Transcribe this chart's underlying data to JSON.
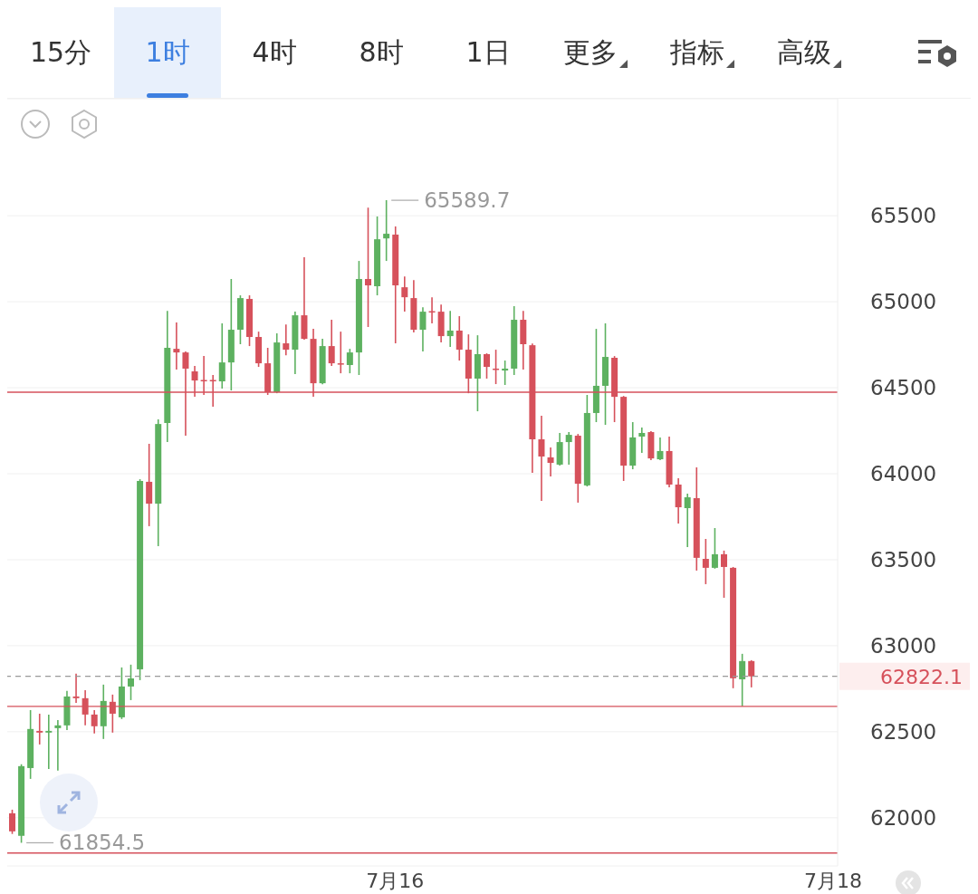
{
  "chart_data": {
    "type": "candlestick",
    "annotations": [
      "15分",
      "1时",
      "4时",
      "8时",
      "1日",
      "更多",
      "指标",
      "高级",
      "65589.7",
      "61854.5"
    ],
    "categories": [
      null,
      null,
      null,
      null,
      null,
      null,
      null,
      null,
      null,
      null,
      null,
      null,
      null,
      null,
      null,
      null,
      null,
      null,
      null,
      null,
      null,
      null,
      null,
      null,
      null,
      null,
      null,
      null,
      null,
      null,
      null,
      null,
      null,
      null,
      null,
      null,
      null,
      null,
      null,
      null,
      null,
      null,
      "7月16",
      null,
      null,
      null,
      null,
      null,
      null,
      null,
      null,
      null,
      null,
      null,
      null,
      null,
      null,
      null,
      null,
      null,
      null,
      null,
      null,
      null,
      null,
      null,
      null,
      null,
      null,
      null,
      null,
      null,
      null,
      null,
      null,
      null,
      null,
      null,
      null,
      null,
      null,
      null,
      null,
      null,
      null,
      null,
      null,
      null,
      null,
      null,
      "7月18"
    ],
    "ohlc": [
      [
        62026,
        62047,
        61906,
        61921
      ],
      [
        61895,
        62311,
        61854.5,
        62300
      ],
      [
        62289,
        62626,
        62226,
        62516
      ],
      [
        62505,
        62605,
        62426,
        62495
      ],
      [
        62495,
        62600,
        62284,
        62505
      ],
      [
        62521,
        62568,
        62274,
        62537
      ],
      [
        62537,
        62737,
        62510,
        62705
      ],
      [
        62705,
        62837,
        62668,
        62695
      ],
      [
        62695,
        62742,
        62537,
        62600
      ],
      [
        62600,
        62626,
        62490,
        62532
      ],
      [
        62532,
        62774,
        62458,
        62679
      ],
      [
        62674,
        62716,
        62495,
        62605
      ],
      [
        62584,
        62874,
        62574,
        62763
      ],
      [
        62763,
        62890,
        62684,
        62810
      ],
      [
        62863,
        63968,
        62800,
        63958
      ],
      [
        63953,
        64174,
        63695,
        63826
      ],
      [
        63826,
        64316,
        63579,
        64289
      ],
      [
        64295,
        64947,
        64184,
        64732
      ],
      [
        64726,
        64879,
        64605,
        64705
      ],
      [
        64705,
        64711,
        64221,
        64611
      ],
      [
        64595,
        64626,
        64447,
        64542
      ],
      [
        64545,
        64684,
        64458,
        64540
      ],
      [
        64545,
        64574,
        64390,
        64537
      ],
      [
        64537,
        64874,
        64495,
        64647
      ],
      [
        64647,
        65132,
        64484,
        64837
      ],
      [
        64837,
        65037,
        64753,
        65021
      ],
      [
        65016,
        65037,
        64742,
        64795
      ],
      [
        64795,
        64826,
        64621,
        64642
      ],
      [
        64642,
        64732,
        64458,
        64474
      ],
      [
        64474,
        64816,
        64468,
        64763
      ],
      [
        64758,
        64868,
        64689,
        64721
      ],
      [
        64721,
        64942,
        64579,
        64921
      ],
      [
        64921,
        65258,
        64779,
        64784
      ],
      [
        64784,
        64842,
        64447,
        64526
      ],
      [
        64526,
        64784,
        64520,
        64742
      ],
      [
        64742,
        64895,
        64626,
        64642
      ],
      [
        64642,
        64826,
        64584,
        64637
      ],
      [
        64632,
        64726,
        64584,
        64705
      ],
      [
        64705,
        65237,
        64574,
        65132
      ],
      [
        65132,
        65547,
        64853,
        65095
      ],
      [
        65090,
        65495,
        65037,
        65363
      ],
      [
        65368,
        65589.7,
        65237,
        65395
      ],
      [
        65390,
        65437,
        64758,
        65095
      ],
      [
        65084,
        65147,
        64942,
        65026
      ],
      [
        65021,
        65126,
        64821,
        64837
      ],
      [
        64837,
        64968,
        64711,
        64942
      ],
      [
        64945,
        65026,
        64874,
        64940
      ],
      [
        64942,
        64984,
        64763,
        64800
      ],
      [
        64800,
        64947,
        64737,
        64832
      ],
      [
        64832,
        64916,
        64658,
        64721
      ],
      [
        64721,
        64810,
        64468,
        64553
      ],
      [
        64553,
        64805,
        64363,
        64695
      ],
      [
        64695,
        64700,
        64553,
        64621
      ],
      [
        64611,
        64721,
        64521,
        64605
      ],
      [
        64600,
        64658,
        64516,
        64611
      ],
      [
        64611,
        64974,
        64574,
        64895
      ],
      [
        64895,
        64947,
        64605,
        64753
      ],
      [
        64747,
        64757,
        64005,
        64200
      ],
      [
        64200,
        64337,
        63842,
        64100
      ],
      [
        64095,
        64153,
        63984,
        64063
      ],
      [
        64053,
        64237,
        64047,
        64184
      ],
      [
        64184,
        64242,
        64053,
        64226
      ],
      [
        64221,
        64231,
        63832,
        63942
      ],
      [
        63932,
        64458,
        63926,
        64353
      ],
      [
        64353,
        64842,
        64300,
        64511
      ],
      [
        64511,
        64874,
        64284,
        64679
      ],
      [
        64674,
        64684,
        64300,
        64447
      ],
      [
        64447,
        64452,
        63958,
        64047
      ],
      [
        64047,
        64300,
        64026,
        64211
      ],
      [
        64216,
        64268,
        64121,
        64237
      ],
      [
        64242,
        64247,
        64079,
        64089
      ],
      [
        64084,
        64211,
        64079,
        64132
      ],
      [
        64132,
        64216,
        63921,
        63937
      ],
      [
        63937,
        63974,
        63711,
        63805
      ],
      [
        63800,
        63884,
        63574,
        63863
      ],
      [
        63858,
        64037,
        63437,
        63511
      ],
      [
        63505,
        63621,
        63358,
        63453
      ],
      [
        63453,
        63684,
        63448,
        63532
      ],
      [
        63532,
        63553,
        63279,
        63458
      ],
      [
        63453,
        63458,
        62753,
        62811
      ],
      [
        62805,
        62953,
        62647,
        62911
      ],
      [
        62911,
        62916,
        62758,
        62822.1
      ],
      null,
      null,
      null,
      null,
      null,
      null,
      null,
      null,
      null
    ],
    "colors": [
      "#d6515b",
      "#5db160",
      "#5db160",
      "#d6515b",
      "#5db160",
      "#5db160",
      "#5db160",
      "#d6515b",
      "#d6515b",
      "#d6515b",
      "#5db160",
      "#d6515b",
      "#5db160",
      "#5db160",
      "#5db160",
      "#d6515b",
      "#5db160",
      "#5db160",
      "#d6515b",
      "#d6515b",
      "#d6515b",
      "#d6515b",
      "#d6515b",
      "#5db160",
      "#5db160",
      "#5db160",
      "#d6515b",
      "#d6515b",
      "#d6515b",
      "#5db160",
      "#d6515b",
      "#5db160",
      "#d6515b",
      "#d6515b",
      "#5db160",
      "#d6515b",
      "#d6515b",
      "#5db160",
      "#5db160",
      "#d6515b",
      "#5db160",
      "#5db160",
      "#d6515b",
      "#d6515b",
      "#d6515b",
      "#5db160",
      "#d6515b",
      "#d6515b",
      "#5db160",
      "#d6515b",
      "#d6515b",
      "#5db160",
      "#d6515b",
      "#d6515b",
      "#5db160",
      "#5db160",
      "#d6515b",
      "#d6515b",
      "#d6515b",
      "#d6515b",
      "#5db160",
      "#5db160",
      "#d6515b",
      "#5db160",
      "#5db160",
      "#5db160",
      "#d6515b",
      "#d6515b",
      "#5db160",
      "#5db160",
      "#d6515b",
      "#5db160",
      "#d6515b",
      "#d6515b",
      "#5db160",
      "#d6515b",
      "#d6515b",
      "#5db160",
      "#d6515b",
      "#d6515b",
      "#5db160",
      "#d6515b",
      null,
      null,
      null,
      null,
      null,
      null,
      null,
      null,
      null
    ],
    "ylim": [
      61720,
      66180
    ],
    "yticks": [
      62000,
      62500,
      63000,
      63500,
      64000,
      64500,
      65000,
      65500
    ],
    "grid": "y",
    "ref_lines": [
      {
        "axis": "y",
        "value": 64474,
        "color": "#d6515b"
      },
      {
        "axis": "y",
        "value": 62647,
        "color": "#d6515b"
      },
      {
        "axis": "y",
        "value": 61795,
        "color": "#d6515b"
      },
      {
        "axis": "y",
        "value": 62822.1,
        "label": "62822.1",
        "color": "#999999",
        "line_style": "dashed"
      }
    ]
  }
}
